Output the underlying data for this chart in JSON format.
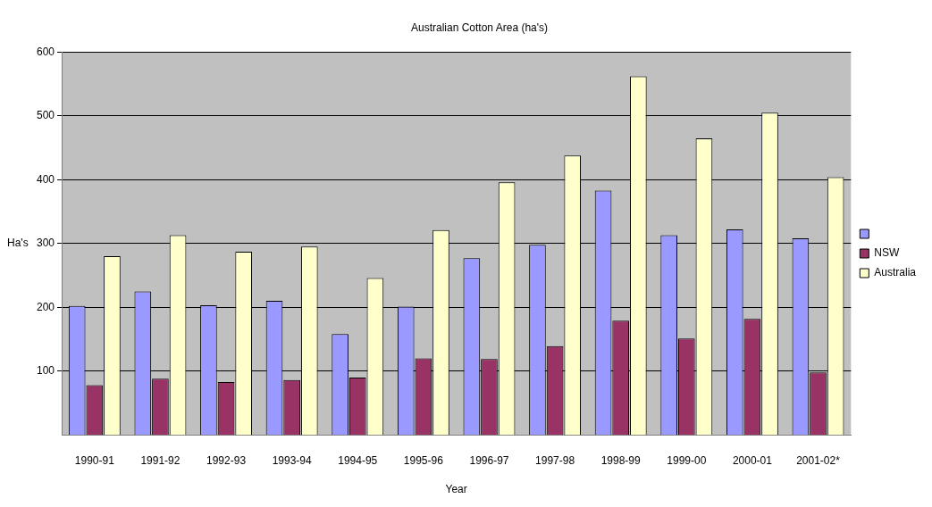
{
  "chart_data": {
    "type": "bar",
    "title": "Australian Cotton Area (ha's)",
    "xlabel": "Year",
    "ylabel": "Ha's",
    "categories": [
      "1990-91",
      "1991-92",
      "1992-93",
      "1993-94",
      "1994-95",
      "1995-96",
      "1996-97",
      "1997-98",
      "1998-99",
      "1999-00",
      "2000-01",
      "2001-02*"
    ],
    "series": [
      {
        "color": "#9999ff",
        "values": [
          202,
          225,
          203,
          210,
          158,
          201,
          277,
          298,
          383,
          313,
          322,
          308
        ]
      },
      {
        "name": "NSW",
        "color": "#993366",
        "values": [
          78,
          88,
          83,
          86,
          90,
          120,
          119,
          139,
          179,
          151,
          182,
          98
        ]
      },
      {
        "name": "Australia",
        "color": "#ffffcc",
        "values": [
          280,
          313,
          287,
          295,
          246,
          321,
          396,
          438,
          562,
          465,
          505,
          404
        ]
      }
    ],
    "ylim": [
      0,
      600
    ],
    "yticks": [
      100,
      200,
      300,
      400,
      500,
      600
    ],
    "grid": "y",
    "legend": "right"
  }
}
